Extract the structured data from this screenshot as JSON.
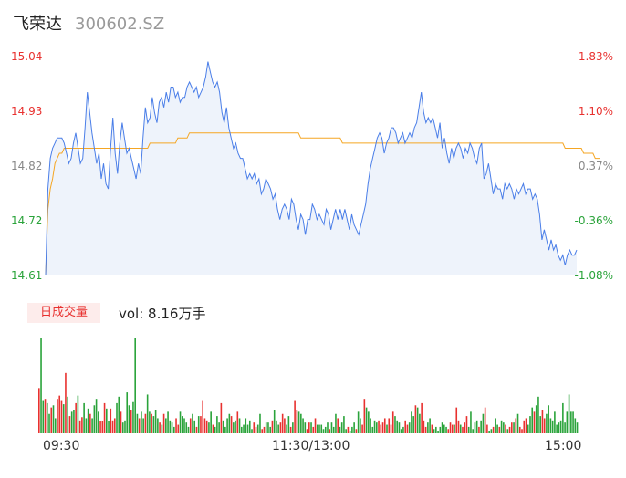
{
  "header": {
    "name": "飞荣达",
    "code": "300602.SZ"
  },
  "price_axis": [
    "15.04",
    "14.93",
    "14.82",
    "14.72",
    "14.61"
  ],
  "pct_axis": [
    "1.83%",
    "1.10%",
    "0.37%",
    "-0.36%",
    "-1.08%"
  ],
  "volume_panel": {
    "badge": "日成交量",
    "vol_text": "vol: 8.16万手"
  },
  "time_labels": {
    "open": "09:30",
    "mid": "11:30/13:00",
    "close": "15:00"
  },
  "colors": {
    "price_line": "#4a7ee8",
    "avg_line": "#f5a623",
    "up": "#e8312f",
    "down": "#2aa33a",
    "area": "#eef3fb"
  },
  "chart_data": {
    "type": "line",
    "ylim": [
      14.61,
      15.04
    ],
    "series": [
      {
        "values": [
          14.61,
          14.78,
          14.84,
          14.86,
          14.87,
          14.88,
          14.88,
          14.88,
          14.87,
          14.85,
          14.83,
          14.84,
          14.87,
          14.89,
          14.86,
          14.83,
          14.84,
          14.9,
          14.97,
          14.93,
          14.89,
          14.86,
          14.83,
          14.85,
          14.8,
          14.83,
          14.79,
          14.78,
          14.86,
          14.92,
          14.85,
          14.81,
          14.87,
          14.91,
          14.88,
          14.85,
          14.86,
          14.84,
          14.82,
          14.8,
          14.83,
          14.81,
          14.88,
          14.94,
          14.91,
          14.92,
          14.96,
          14.93,
          14.91,
          14.95,
          14.96,
          14.94,
          14.97,
          14.95,
          14.98,
          14.98,
          14.96,
          14.97,
          14.95,
          14.96,
          14.96,
          14.98,
          14.99,
          14.98,
          14.97,
          14.98,
          14.96,
          14.97,
          14.98,
          15.0,
          15.03,
          15.01,
          14.99,
          14.98,
          14.99,
          14.97,
          14.93,
          14.91,
          14.94,
          14.9,
          14.88,
          14.86,
          14.87,
          14.85,
          14.84,
          14.84,
          14.82,
          14.8,
          14.81,
          14.8,
          14.81,
          14.79,
          14.8,
          14.77,
          14.78,
          14.8,
          14.79,
          14.78,
          14.76,
          14.77,
          14.74,
          14.72,
          14.74,
          14.75,
          14.74,
          14.72,
          14.76,
          14.75,
          14.72,
          14.7,
          14.73,
          14.72,
          14.69,
          14.72,
          14.72,
          14.75,
          14.74,
          14.72,
          14.73,
          14.72,
          14.71,
          14.74,
          14.73,
          14.7,
          14.72,
          14.74,
          14.72,
          14.74,
          14.72,
          14.74,
          14.72,
          14.7,
          14.73,
          14.71,
          14.7,
          14.69,
          14.71,
          14.73,
          14.75,
          14.79,
          14.82,
          14.84,
          14.86,
          14.88,
          14.89,
          14.88,
          14.85,
          14.87,
          14.88,
          14.9,
          14.9,
          14.89,
          14.87,
          14.88,
          14.89,
          14.87,
          14.88,
          14.89,
          14.88,
          14.9,
          14.91,
          14.94,
          14.97,
          14.93,
          14.91,
          14.92,
          14.91,
          14.92,
          14.9,
          14.88,
          14.91,
          14.86,
          14.88,
          14.85,
          14.83,
          14.86,
          14.84,
          14.86,
          14.87,
          14.86,
          14.84,
          14.86,
          14.85,
          14.87,
          14.86,
          14.84,
          14.83,
          14.86,
          14.87,
          14.8,
          14.81,
          14.83,
          14.8,
          14.77,
          14.79,
          14.78,
          14.78,
          14.76,
          14.79,
          14.78,
          14.79,
          14.78,
          14.76,
          14.78,
          14.77,
          14.78,
          14.79,
          14.77,
          14.78,
          14.78,
          14.76,
          14.77,
          14.76,
          14.73,
          14.68,
          14.7,
          14.68,
          14.66,
          14.68,
          14.66,
          14.67,
          14.65,
          14.64,
          14.65,
          14.63,
          14.65,
          14.66,
          14.65,
          14.65,
          14.66
        ]
      },
      {
        "values": [
          14.61,
          14.74,
          14.78,
          14.8,
          14.83,
          14.84,
          14.85,
          14.85,
          14.86,
          14.86,
          14.86,
          14.86,
          14.86,
          14.86,
          14.86,
          14.86,
          14.86,
          14.86,
          14.86,
          14.86,
          14.86,
          14.86,
          14.86,
          14.86,
          14.86,
          14.86,
          14.86,
          14.86,
          14.86,
          14.86,
          14.86,
          14.86,
          14.86,
          14.86,
          14.86,
          14.86,
          14.86,
          14.86,
          14.86,
          14.86,
          14.86,
          14.86,
          14.86,
          14.86,
          14.86,
          14.87,
          14.87,
          14.87,
          14.87,
          14.87,
          14.87,
          14.87,
          14.87,
          14.87,
          14.87,
          14.87,
          14.87,
          14.88,
          14.88,
          14.88,
          14.88,
          14.88,
          14.89,
          14.89,
          14.89,
          14.89,
          14.89,
          14.89,
          14.89,
          14.89,
          14.89,
          14.89,
          14.89,
          14.89,
          14.89,
          14.89,
          14.89,
          14.89,
          14.89,
          14.89,
          14.89,
          14.89,
          14.89,
          14.89,
          14.89,
          14.89,
          14.89,
          14.89,
          14.89,
          14.89,
          14.89,
          14.89,
          14.89,
          14.89,
          14.89,
          14.89,
          14.89,
          14.89,
          14.89,
          14.89,
          14.89,
          14.89,
          14.89,
          14.89,
          14.89,
          14.89,
          14.89,
          14.89,
          14.89,
          14.89,
          14.88,
          14.88,
          14.88,
          14.88,
          14.88,
          14.88,
          14.88,
          14.88,
          14.88,
          14.88,
          14.88,
          14.88,
          14.88,
          14.88,
          14.88,
          14.88,
          14.88,
          14.88,
          14.87,
          14.87,
          14.87,
          14.87,
          14.87,
          14.87,
          14.87,
          14.87,
          14.87,
          14.87,
          14.87,
          14.87,
          14.87,
          14.87,
          14.87,
          14.87,
          14.87,
          14.87,
          14.87,
          14.87,
          14.87,
          14.87,
          14.87,
          14.87,
          14.87,
          14.87,
          14.87,
          14.87,
          14.87,
          14.87,
          14.87,
          14.87,
          14.87,
          14.87,
          14.87,
          14.87,
          14.87,
          14.87,
          14.87,
          14.87,
          14.87,
          14.87,
          14.87,
          14.87,
          14.87,
          14.87,
          14.87,
          14.87,
          14.87,
          14.87,
          14.87,
          14.87,
          14.87,
          14.87,
          14.87,
          14.87,
          14.87,
          14.87,
          14.87,
          14.87,
          14.87,
          14.87,
          14.87,
          14.87,
          14.87,
          14.87,
          14.87,
          14.87,
          14.87,
          14.87,
          14.87,
          14.87,
          14.87,
          14.87,
          14.87,
          14.87,
          14.87,
          14.87,
          14.87,
          14.87,
          14.87,
          14.87,
          14.87,
          14.87,
          14.87,
          14.87,
          14.87,
          14.87,
          14.87,
          14.87,
          14.87,
          14.87,
          14.87,
          14.87,
          14.87,
          14.87,
          14.86,
          14.86,
          14.86,
          14.86,
          14.86,
          14.86,
          14.86,
          14.86,
          14.85,
          14.85,
          14.85,
          14.85,
          14.85,
          14.84,
          14.84,
          14.84
        ]
      }
    ],
    "volume": {
      "values": [
        42,
        88,
        30,
        32,
        28,
        18,
        24,
        26,
        14,
        32,
        35,
        30,
        27,
        56,
        34,
        16,
        20,
        22,
        28,
        35,
        12,
        15,
        28,
        14,
        23,
        18,
        14,
        26,
        32,
        20,
        11,
        11,
        28,
        23,
        11,
        23,
        12,
        14,
        28,
        34,
        20,
        10,
        12,
        38,
        26,
        22,
        29,
        88,
        18,
        14,
        20,
        14,
        18,
        36,
        20,
        18,
        16,
        22,
        14,
        10,
        8,
        18,
        14,
        20,
        12,
        10,
        6,
        14,
        8,
        20,
        16,
        14,
        10,
        6,
        14,
        18,
        12,
        6,
        16,
        16,
        30,
        14,
        12,
        10,
        20,
        8,
        6,
        16,
        10,
        28,
        12,
        6,
        14,
        18,
        16,
        10,
        12,
        20,
        14,
        6,
        8,
        14,
        8,
        12,
        4,
        10,
        6,
        8,
        18,
        4,
        6,
        10,
        10,
        6,
        12,
        22,
        12,
        8,
        10,
        18,
        14,
        8,
        16,
        6,
        10,
        30,
        22,
        20,
        18,
        14,
        10,
        4,
        10,
        10,
        6,
        14,
        8,
        8,
        8,
        4,
        6,
        10,
        4,
        10,
        6,
        18,
        14,
        6,
        10,
        16,
        4,
        6,
        2,
        6,
        10,
        4,
        20,
        14,
        8,
        32,
        24,
        20,
        14,
        6,
        12,
        10,
        12,
        8,
        10,
        14,
        8,
        14,
        8,
        20,
        16,
        12,
        10,
        4,
        6,
        12,
        8,
        10,
        20,
        16,
        26,
        24,
        18,
        28,
        12,
        6,
        10,
        14,
        8,
        4,
        6,
        2,
        6,
        10,
        8,
        6,
        4,
        10,
        8,
        8,
        24,
        12,
        8,
        6,
        10,
        16,
        6,
        20,
        4,
        10,
        12,
        6,
        12,
        18,
        24,
        8,
        2,
        4,
        6,
        14,
        8,
        6,
        12,
        10,
        8,
        4,
        6,
        10,
        10,
        14,
        18,
        6,
        4,
        12,
        14,
        8,
        16,
        24,
        20,
        26,
        34,
        16,
        22,
        14,
        18,
        26,
        14,
        12,
        20,
        8,
        10,
        12,
        28,
        10,
        20,
        36,
        20,
        20,
        14,
        10
      ],
      "directions": "udduddudduuudududduduudddudddduuudduuudduddddudddudduddudddududdddduudddddudduduuuudduddduddddudduddddddduudduuddduddduuudduduudddduuduudddddduddduddddudddudduudddddduuuuduuuddddduudddudduuudduddddddduuuduuduuudddddudduudduddudduduududuuuuddduddduud"
    }
  }
}
